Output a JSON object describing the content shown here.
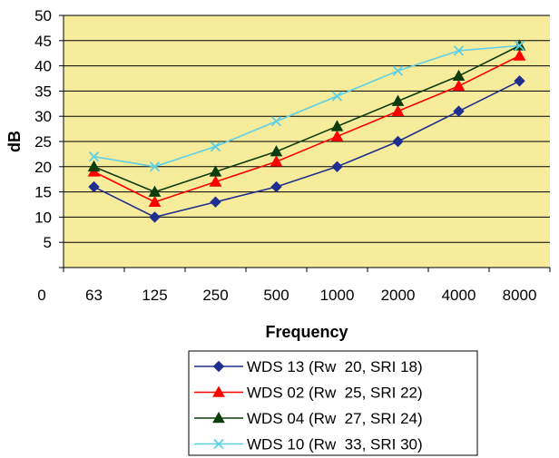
{
  "chart_data": {
    "type": "line",
    "title": "",
    "xlabel": "Frequency",
    "ylabel": "dB",
    "categories": [
      "63",
      "125",
      "250",
      "500",
      "1000",
      "2000",
      "4000",
      "8000"
    ],
    "ylim": [
      0,
      50
    ],
    "yticks": [
      5,
      10,
      15,
      20,
      25,
      30,
      35,
      40,
      45,
      50
    ],
    "y_zero_label": "0",
    "grid": true,
    "legend_position": "bottom",
    "plot_background": "#f7ec9c",
    "series": [
      {
        "name": "WDS 13 (Rw  20, SRI 18)",
        "color": "#1f2f8f",
        "marker": "diamond",
        "values": [
          16,
          10,
          13,
          16,
          20,
          25,
          31,
          37
        ]
      },
      {
        "name": "WDS 02 (Rw  25, SRI 22)",
        "color": "#ff0000",
        "marker": "triangle",
        "values": [
          19,
          13,
          17,
          21,
          26,
          31,
          36,
          42
        ]
      },
      {
        "name": "WDS 04 (Rw  27, SRI 24)",
        "color": "#0d3d0d",
        "marker": "triangle",
        "values": [
          20,
          15,
          19,
          23,
          28,
          33,
          38,
          44
        ]
      },
      {
        "name": "WDS 10 (Rw  33, SRI 30)",
        "color": "#5ecfe6",
        "marker": "x",
        "values": [
          22,
          20,
          24,
          29,
          34,
          39,
          43,
          44
        ]
      }
    ]
  }
}
